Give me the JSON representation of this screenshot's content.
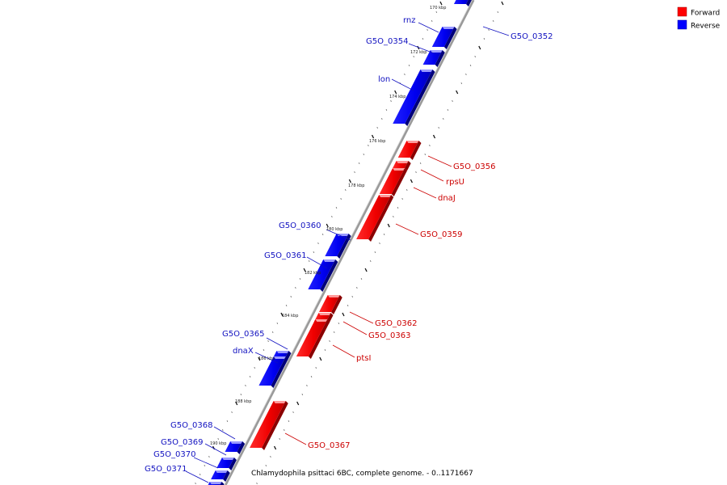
{
  "caption": "Chlamydophila psittaci 6BC, complete genome. - 0..1171667",
  "legend": {
    "items": [
      {
        "label": "Forward",
        "color": "#ff0000"
      },
      {
        "label": "Reverse",
        "color": "#0000ff"
      }
    ]
  },
  "colors": {
    "forward": "#ff0000",
    "reverse": "#0000ff",
    "forward_label": "#cc0000",
    "reverse_label": "#1010c0"
  },
  "kbp_ticks": [
    "170 kbp",
    "172 kbp",
    "174 kbp",
    "176 kbp",
    "178 kbp",
    "180 kbp",
    "182 kbp",
    "184 kbp",
    "186 kbp",
    "188 kbp",
    "190 kbp"
  ],
  "genes": [
    {
      "name": "",
      "strand": "reverse"
    },
    {
      "name": "G5O_0352",
      "strand": "reverse"
    },
    {
      "name": "rnz",
      "strand": "reverse"
    },
    {
      "name": "G5O_0354",
      "strand": "reverse"
    },
    {
      "name": "lon",
      "strand": "reverse"
    },
    {
      "name": "G5O_0356",
      "strand": "forward"
    },
    {
      "name": "rpsU",
      "strand": "forward"
    },
    {
      "name": "dnaJ",
      "strand": "forward"
    },
    {
      "name": "G5O_0359",
      "strand": "forward"
    },
    {
      "name": "G5O_0360",
      "strand": "reverse"
    },
    {
      "name": "G5O_0361",
      "strand": "reverse"
    },
    {
      "name": "G5O_0362",
      "strand": "forward"
    },
    {
      "name": "G5O_0363",
      "strand": "forward"
    },
    {
      "name": "ptsI",
      "strand": "forward"
    },
    {
      "name": "G5O_0365",
      "strand": "reverse"
    },
    {
      "name": "dnaX",
      "strand": "reverse"
    },
    {
      "name": "G5O_0367",
      "strand": "forward"
    },
    {
      "name": "G5O_0368",
      "strand": "reverse"
    },
    {
      "name": "G5O_0369",
      "strand": "reverse"
    },
    {
      "name": "G5O_0370",
      "strand": "reverse"
    },
    {
      "name": "G5O_0371",
      "strand": "reverse"
    }
  ]
}
